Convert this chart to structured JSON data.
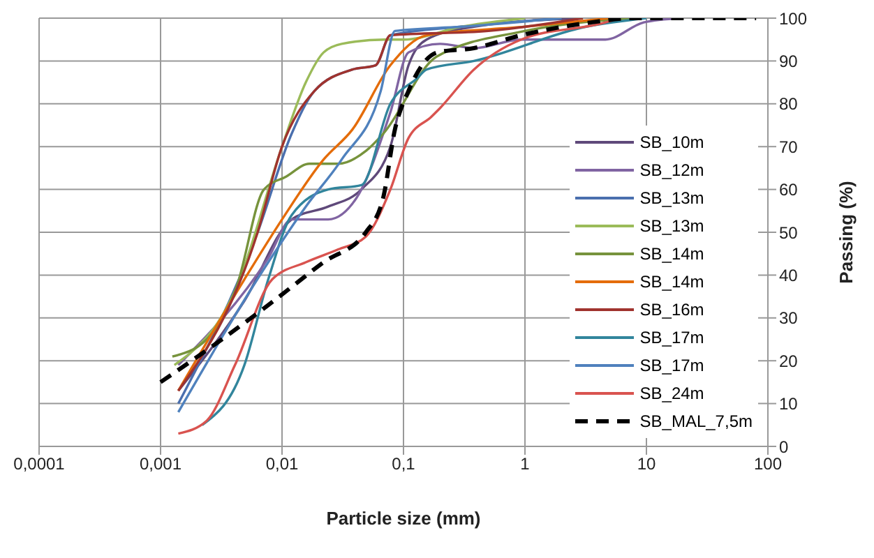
{
  "chart_data": {
    "type": "line",
    "xlabel": "Particle size (mm)",
    "ylabel": "Passing (%)",
    "log": "x",
    "grid": true,
    "legend": "right",
    "marker": "none",
    "line_style": "solid",
    "xlim": [
      0.0001,
      100
    ],
    "xticks": [
      {
        "value": 0.0001,
        "label": "0,0001"
      },
      {
        "value": 0.001,
        "label": "0,001"
      },
      {
        "value": 0.01,
        "label": "0,01"
      },
      {
        "value": 0.1,
        "label": "0,1"
      },
      1,
      10,
      100
    ],
    "ylim": [
      0,
      100
    ],
    "yticks": [
      0,
      10,
      20,
      30,
      40,
      50,
      60,
      70,
      80,
      90,
      100
    ],
    "series": [
      {
        "name": "SB_10m",
        "color": "#5f497a",
        "x": [
          0.0014,
          0.0049,
          0.012,
          0.024,
          0.045,
          0.078,
          0.11,
          0.155,
          0.38,
          3
        ],
        "values": [
          13,
          34,
          53,
          56,
          60,
          70,
          89,
          95,
          98,
          100
        ]
      },
      {
        "name": "SB_12m",
        "color": "#8064a2",
        "x": [
          0.0014,
          0.0077,
          0.012,
          0.024,
          0.041,
          0.078,
          0.11,
          0.2,
          0.38,
          0.93,
          4.6,
          9.5,
          19
        ],
        "values": [
          19,
          44,
          53,
          53,
          58,
          78,
          92,
          94,
          93,
          95,
          95,
          99,
          100
        ]
      },
      {
        "name": "SB_13m",
        "color": "#4a6fae",
        "x": [
          0.0014,
          0.0063,
          0.012,
          0.0185,
          0.038,
          0.059,
          0.078,
          0.3,
          2
        ],
        "values": [
          10,
          50,
          73,
          83,
          88,
          89,
          96,
          98,
          100
        ]
      },
      {
        "name": "SB_13m",
        "color": "#9bbb59",
        "x": [
          0.0013,
          0.0042,
          0.01,
          0.0157,
          0.022,
          0.031,
          0.07,
          0.1,
          0.3,
          1
        ],
        "values": [
          19,
          37,
          70,
          85,
          92,
          94,
          95,
          95,
          98,
          100
        ]
      },
      {
        "name": "SB_14m",
        "color": "#77933c",
        "x": [
          0.00125,
          0.0024,
          0.0042,
          0.0071,
          0.0108,
          0.0168,
          0.029,
          0.049,
          0.068,
          0.187,
          1,
          7.8
        ],
        "values": [
          21,
          25,
          37,
          60,
          63,
          66,
          66,
          69,
          73,
          91,
          97,
          100
        ]
      },
      {
        "name": "SB_14m",
        "color": "#e46c0a",
        "x": [
          0.0014,
          0.0049,
          0.01,
          0.022,
          0.038,
          0.078,
          0.155,
          1,
          5
        ],
        "values": [
          13,
          39,
          53,
          67,
          74,
          89,
          96,
          98,
          100
        ]
      },
      {
        "name": "SB_16m",
        "color": "#a0332e",
        "x": [
          0.0014,
          0.0063,
          0.01,
          0.0185,
          0.038,
          0.059,
          0.078,
          0.5,
          3
        ],
        "values": [
          13,
          50,
          70,
          83,
          88,
          89,
          96,
          97,
          100
        ]
      },
      {
        "name": "SB_17m",
        "color": "#31859c",
        "x": [
          0.0022,
          0.0049,
          0.0077,
          0.012,
          0.024,
          0.045,
          0.078,
          0.13,
          0.155,
          0.38,
          3.2,
          10
        ],
        "values": [
          5,
          19,
          39,
          54,
          60,
          61,
          80,
          86,
          88,
          90,
          98,
          100
        ]
      },
      {
        "name": "SB_17m",
        "color": "#4f81bd",
        "x": [
          0.0014,
          0.0077,
          0.0157,
          0.031,
          0.065,
          0.085,
          0.3,
          2
        ],
        "values": [
          8,
          43,
          56,
          67,
          83,
          97,
          98,
          100
        ]
      },
      {
        "name": "SB_24m",
        "color": "#d9534f",
        "x": [
          0.0014,
          0.0024,
          0.0041,
          0.0083,
          0.0157,
          0.029,
          0.049,
          0.078,
          0.11,
          0.17,
          0.2,
          0.38,
          0.93,
          4.6,
          6
        ],
        "values": [
          3,
          6,
          19,
          39,
          43,
          46,
          49,
          60,
          72,
          77,
          79,
          88,
          95,
          99,
          100
        ]
      },
      {
        "name": "SB_MAL_7,5m",
        "color": "#000000",
        "line_style": "dashed",
        "x": [
          0.001,
          0.0032,
          0.0077,
          0.022,
          0.049,
          0.068,
          0.085,
          0.11,
          0.19,
          0.38,
          0.93,
          3.5,
          7.7,
          80
        ],
        "values": [
          15,
          25,
          33,
          43,
          50,
          58,
          74,
          83,
          92,
          93,
          96,
          99,
          100,
          100
        ]
      }
    ]
  }
}
